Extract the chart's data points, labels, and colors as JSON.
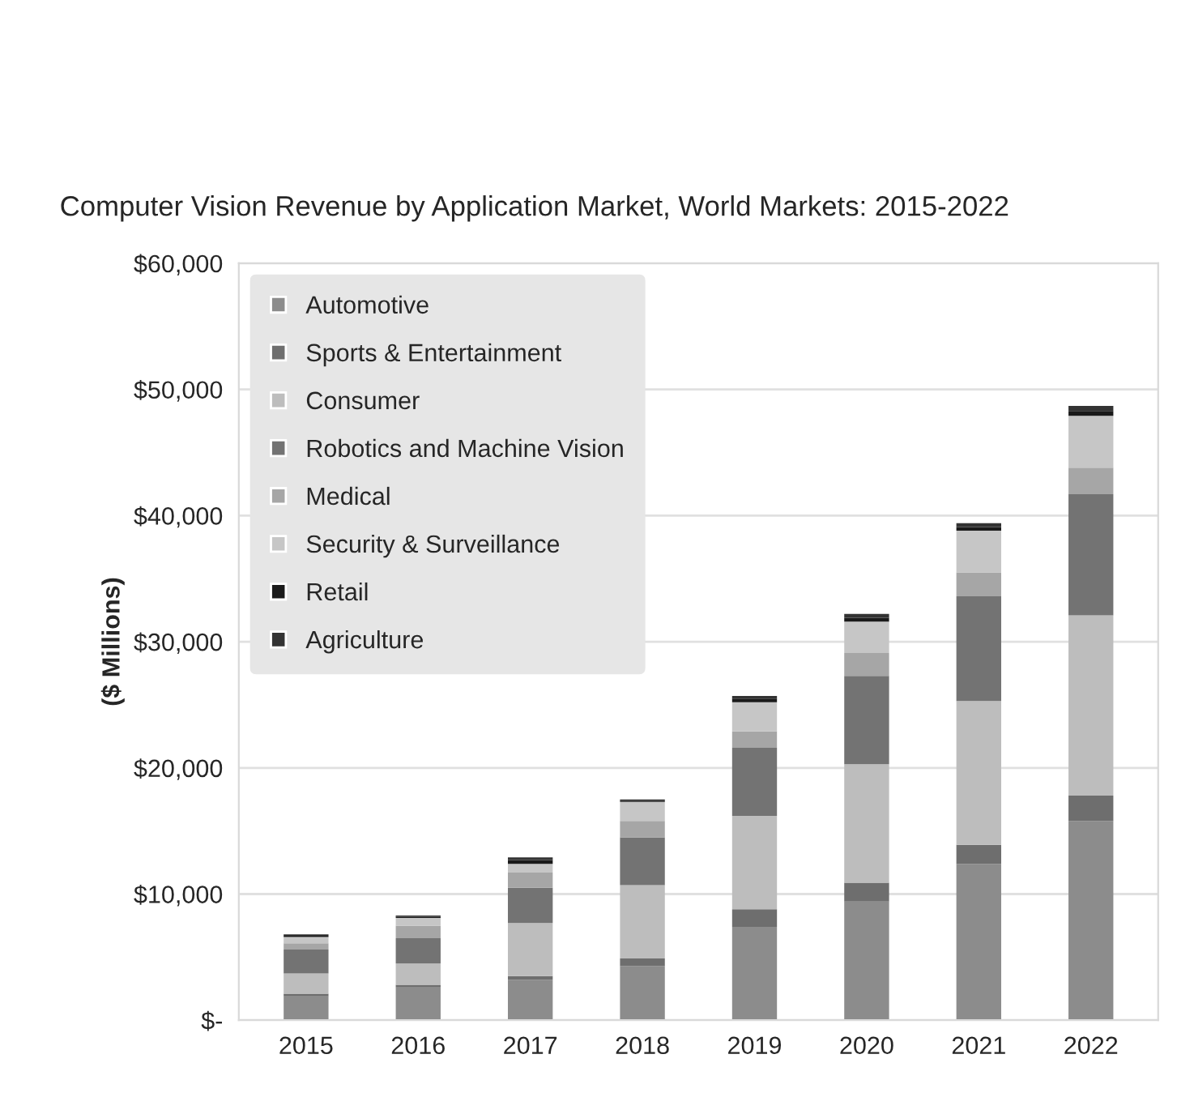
{
  "chart_data": {
    "type": "bar",
    "stacked": true,
    "title": "Computer Vision Revenue by Application Market, World Markets: 2015-2022",
    "ylabel": "($ Millions)",
    "categories": [
      "2015",
      "2016",
      "2017",
      "2018",
      "2019",
      "2020",
      "2021",
      "2022"
    ],
    "series": [
      {
        "name": "Automotive",
        "color": "#8c8c8c",
        "values": [
          1900,
          2600,
          3200,
          4300,
          7400,
          9400,
          12400,
          15800
        ]
      },
      {
        "name": "Sports & Entertainment",
        "color": "#6e6e6e",
        "values": [
          200,
          200,
          300,
          600,
          1400,
          1500,
          1500,
          2000
        ]
      },
      {
        "name": "Consumer",
        "color": "#bdbdbd",
        "values": [
          1600,
          1700,
          4200,
          5800,
          7400,
          9400,
          11400,
          14300
        ]
      },
      {
        "name": "Robotics and Machine Vision",
        "color": "#737373",
        "values": [
          1900,
          2000,
          2800,
          3800,
          5400,
          7000,
          8300,
          9600
        ]
      },
      {
        "name": "Medical",
        "color": "#a6a6a6",
        "values": [
          500,
          1000,
          1200,
          1300,
          1300,
          1800,
          1900,
          2100
        ]
      },
      {
        "name": "Security & Surveillance",
        "color": "#c6c6c6",
        "values": [
          500,
          600,
          700,
          1500,
          2300,
          2500,
          3300,
          4100
        ]
      },
      {
        "name": "Retail",
        "color": "#1a1a1a",
        "values": [
          100,
          100,
          300,
          100,
          300,
          300,
          300,
          400
        ]
      },
      {
        "name": "Agriculture",
        "color": "#333333",
        "values": [
          100,
          100,
          200,
          100,
          200,
          300,
          300,
          400
        ]
      }
    ],
    "ylim": [
      0,
      60000
    ],
    "yticks": [
      {
        "value": 0,
        "label": "$-"
      },
      {
        "value": 10000,
        "label": "$10,000"
      },
      {
        "value": 20000,
        "label": "$20,000"
      },
      {
        "value": 30000,
        "label": "$30,000"
      },
      {
        "value": 40000,
        "label": "$40,000"
      },
      {
        "value": 50000,
        "label": "$50,000"
      },
      {
        "value": 60000,
        "label": "$60,000"
      }
    ],
    "grid": "y",
    "legend": "top left"
  }
}
